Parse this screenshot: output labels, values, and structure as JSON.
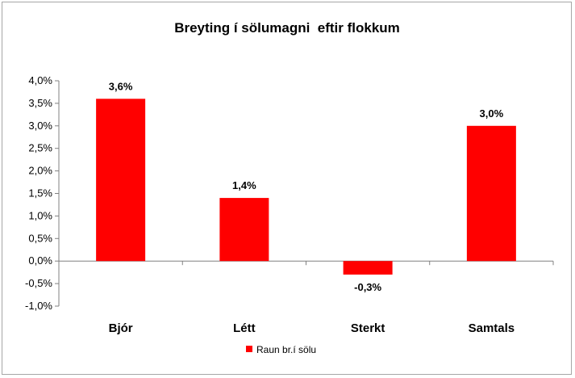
{
  "chart_data": {
    "type": "bar",
    "title": "Breyting í sölumagni  eftir flokkum",
    "xlabel": "",
    "ylabel": "",
    "categories": [
      "Bjór",
      "Létt",
      "Sterkt",
      "Samtals"
    ],
    "series": [
      {
        "name": "Raun br.í sölu",
        "values": [
          3.6,
          1.4,
          -0.3,
          3.0
        ],
        "color": "#ff0000"
      }
    ],
    "data_labels": [
      "3,6%",
      "1,4%",
      "-0,3%",
      "3,0%"
    ],
    "ylim": [
      -1.0,
      4.0
    ],
    "yticks": [
      4.0,
      3.5,
      3.0,
      2.5,
      2.0,
      1.5,
      1.0,
      0.5,
      0.0,
      -0.5,
      -1.0
    ],
    "ytick_labels": [
      "4,0%",
      "3,5%",
      "3,0%",
      "2,5%",
      "2,0%",
      "1,5%",
      "1,0%",
      "0,5%",
      "0,0%",
      "-0,5%",
      "-1,0%"
    ],
    "grid": false,
    "legend_position": "bottom"
  }
}
